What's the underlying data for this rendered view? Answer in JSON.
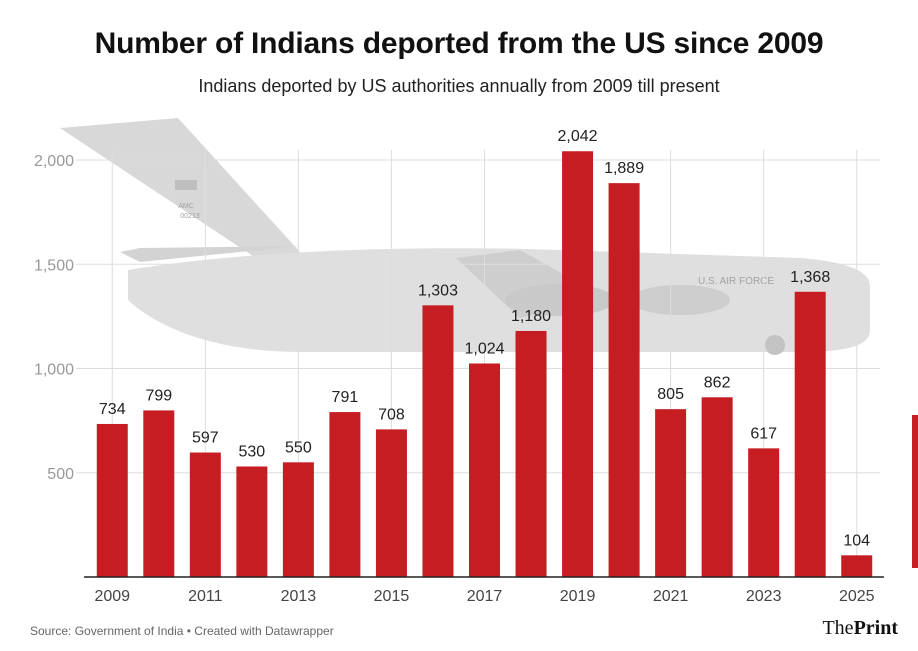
{
  "title": "Number of Indians deported from the US since 2009",
  "subtitle": "Indians deported by US authorities annually from 2009 till present",
  "footer": {
    "source": "Source: Government of India • Created with Datawrapper",
    "brand_the": "The",
    "brand_print": "Print"
  },
  "colors": {
    "bar": "#c61d23",
    "grid": "#dddddd",
    "axis": "#222222",
    "tick_label": "#999999"
  },
  "background_image": {
    "aircraft_tail_text": "AMC",
    "aircraft_tail_number": "00213",
    "aircraft_fuselage_text": "U.S. AIR FORCE"
  },
  "chart_data": {
    "type": "bar",
    "title": "Number of Indians deported from the US since 2009",
    "xlabel": "",
    "ylabel": "",
    "categories": [
      "2009",
      "2010",
      "2011",
      "2012",
      "2013",
      "2014",
      "2015",
      "2016",
      "2017",
      "2018",
      "2019",
      "2020",
      "2021",
      "2022",
      "2023",
      "2024",
      "2025"
    ],
    "values": [
      734,
      799,
      597,
      530,
      550,
      791,
      708,
      1303,
      1024,
      1180,
      2042,
      1889,
      805,
      862,
      617,
      1368,
      104
    ],
    "data_labels": [
      "734",
      "799",
      "597",
      "530",
      "550",
      "791",
      "708",
      "1,303",
      "1,024",
      "1,180",
      "2,042",
      "1,889",
      "805",
      "862",
      "617",
      "1,368",
      "104"
    ],
    "x_tick_labels": [
      "2009",
      "2011",
      "2013",
      "2015",
      "2017",
      "2019",
      "2021",
      "2023",
      "2025"
    ],
    "y_ticks": [
      500,
      1000,
      1500,
      2000
    ],
    "y_tick_labels": [
      "500",
      "1,000",
      "1,500",
      "2,000"
    ],
    "ylim": [
      0,
      2050
    ],
    "grid": true
  }
}
